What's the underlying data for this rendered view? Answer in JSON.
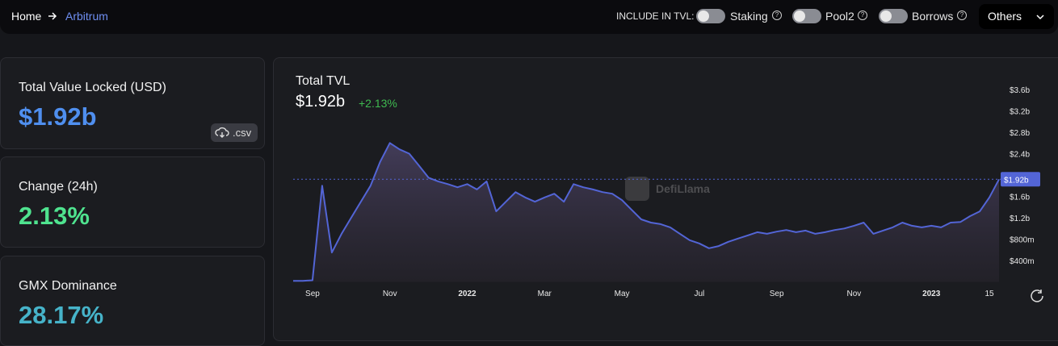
{
  "nav": {
    "breadcrumb": [
      "Home",
      "Arbitrum"
    ],
    "include_label": "INCLUDE IN TVL:",
    "toggles": [
      "Staking",
      "Pool2",
      "Borrows"
    ],
    "dropdown": "Others"
  },
  "stats": [
    {
      "label": "Total Value Locked (USD)",
      "value": "$1.92b"
    },
    {
      "label": "Change (24h)",
      "value": "2.13%"
    },
    {
      "label": "GMX Dominance",
      "value": "28.17%"
    }
  ],
  "csv_button": ".csv",
  "chart_data": {
    "type": "area",
    "title": "Total TVL",
    "headline": "$1.92b",
    "change": "+2.13%",
    "watermark": "DefiLlama",
    "color": "#5365d6",
    "categories": [
      null,
      null,
      "Sep",
      null,
      null,
      null,
      null,
      null,
      null,
      null,
      "Nov",
      null,
      null,
      null,
      null,
      null,
      null,
      null,
      "2022",
      null,
      null,
      null,
      null,
      null,
      null,
      null,
      "Mar",
      null,
      null,
      null,
      null,
      null,
      null,
      null,
      "May",
      null,
      null,
      null,
      null,
      null,
      null,
      null,
      "Jul",
      null,
      null,
      null,
      null,
      null,
      null,
      null,
      "Sep",
      null,
      null,
      null,
      null,
      null,
      null,
      null,
      "Nov",
      null,
      null,
      null,
      null,
      null,
      null,
      null,
      "2023",
      null,
      null,
      null,
      null,
      null,
      "15",
      null
    ],
    "values": [
      0.02,
      0.02,
      0.03,
      1.8,
      0.55,
      0.9,
      1.2,
      1.5,
      1.8,
      2.25,
      2.6,
      2.48,
      2.4,
      2.18,
      1.95,
      1.88,
      1.83,
      1.77,
      1.83,
      1.73,
      1.88,
      1.32,
      1.5,
      1.68,
      1.58,
      1.5,
      1.58,
      1.65,
      1.5,
      1.83,
      1.77,
      1.73,
      1.68,
      1.65,
      1.53,
      1.35,
      1.17,
      1.11,
      1.08,
      1.02,
      0.9,
      0.78,
      0.72,
      0.63,
      0.67,
      0.75,
      0.81,
      0.87,
      0.93,
      0.9,
      0.94,
      0.97,
      0.93,
      0.96,
      0.9,
      0.93,
      0.97,
      1.0,
      1.05,
      1.11,
      0.9,
      0.96,
      1.02,
      1.11,
      1.05,
      1.02,
      1.05,
      1.02,
      1.11,
      1.12,
      1.23,
      1.32,
      1.58,
      1.92
    ],
    "ylim": [
      0,
      3.8
    ],
    "yticks": [
      {
        "value": 0.4,
        "label": "$400m"
      },
      {
        "value": 0.8,
        "label": "$800m"
      },
      {
        "value": 1.2,
        "label": "$1.2b"
      },
      {
        "value": 1.6,
        "label": "$1.6b"
      },
      {
        "value": 2.4,
        "label": "$2.4b"
      },
      {
        "value": 2.8,
        "label": "$2.8b"
      },
      {
        "value": 3.2,
        "label": "$3.2b"
      },
      {
        "value": 3.6,
        "label": "$3.6b"
      }
    ],
    "current": {
      "value": 1.92,
      "label": "$1.92b"
    },
    "grid": false
  }
}
